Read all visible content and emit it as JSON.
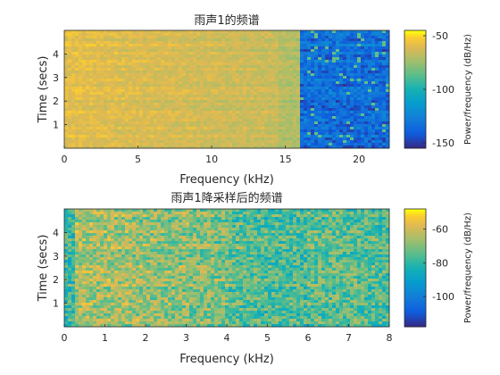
{
  "chart_data": [
    {
      "type": "heatmap",
      "title": "雨声1的频谱",
      "xlabel": "Frequency (kHz)",
      "ylabel": "Time (secs)",
      "xlim": [
        0,
        22.05
      ],
      "ylim": [
        0,
        5
      ],
      "xticks": [
        0,
        5,
        10,
        15,
        20
      ],
      "yticks": [
        1,
        2,
        3,
        4
      ],
      "colorbar": {
        "label": "Power/frequency (dB/Hz)",
        "clim": [
          -155,
          -45
        ],
        "ticks": [
          -50,
          -100,
          -150
        ]
      },
      "colormap": "parula",
      "description_levels": {
        "low_freq_band_dB": -58,
        "mid_band_dB": -65,
        "above_16kHz_dB": -135,
        "cutoff_kHz": 16
      }
    },
    {
      "type": "heatmap",
      "title": "雨声1降采样后的频谱",
      "xlabel": "Frequency (kHz)",
      "ylabel": "Time (secs)",
      "xlim": [
        0,
        8
      ],
      "ylim": [
        0,
        5
      ],
      "xticks": [
        0,
        1,
        2,
        3,
        4,
        5,
        6,
        7,
        8
      ],
      "yticks": [
        1,
        2,
        3,
        4
      ],
      "colorbar": {
        "label": "Power/frequency (dB/Hz)",
        "clim": [
          -118,
          -48
        ],
        "ticks": [
          -60,
          -80,
          -100
        ]
      },
      "colormap": "parula"
    }
  ]
}
